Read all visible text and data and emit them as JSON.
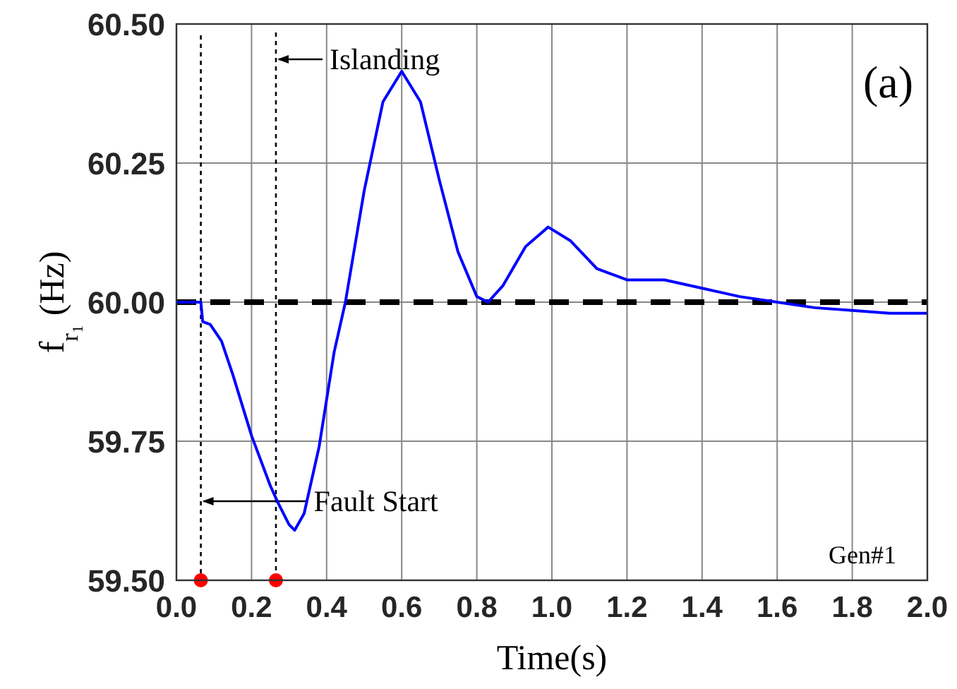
{
  "chart_data": {
    "type": "line",
    "xlabel": "Time(s)",
    "ylabel": "f$_{r₁}$ (Hz)",
    "xlim": [
      0,
      2
    ],
    "xticks": [
      {
        "value": 0,
        "label": "0.0"
      },
      {
        "value": 0.2,
        "label": "0.2"
      },
      {
        "value": 0.4,
        "label": "0.4"
      },
      {
        "value": 0.6,
        "label": "0.6"
      },
      {
        "value": 0.8,
        "label": "0.8"
      },
      {
        "value": 1,
        "label": "1.0"
      },
      {
        "value": 1.2,
        "label": "1.2"
      },
      {
        "value": 1.4,
        "label": "1.4"
      },
      {
        "value": 1.6,
        "label": "1.6"
      },
      {
        "value": 1.8,
        "label": "1.8"
      },
      {
        "value": 2,
        "label": "2.0"
      }
    ],
    "ylim": [
      59.5,
      60.5
    ],
    "yticks": [
      {
        "value": 59.5,
        "label": "59.50"
      },
      {
        "value": 59.75,
        "label": "59.75"
      },
      {
        "value": 60,
        "label": "60.00"
      },
      {
        "value": 60.25,
        "label": "60.25"
      },
      {
        "value": 60.5,
        "label": "60.50"
      }
    ],
    "grid": true,
    "line_style": "solid",
    "series": [
      {
        "color": "#0000ff",
        "x": [
          0,
          0.065,
          0.07,
          0.09,
          0.12,
          0.15,
          0.2,
          0.25,
          0.27,
          0.3,
          0.315,
          0.34,
          0.38,
          0.42,
          0.45,
          0.5,
          0.55,
          0.6,
          0.65,
          0.7,
          0.75,
          0.8,
          0.83,
          0.87,
          0.93,
          0.99,
          1.05,
          1.12,
          1.2,
          1.3,
          1.4,
          1.5,
          1.6,
          1.7,
          1.8,
          1.9,
          2.0
        ],
        "values": [
          60,
          60,
          59.965,
          59.96,
          59.93,
          59.87,
          59.76,
          59.67,
          59.64,
          59.6,
          59.59,
          59.62,
          59.74,
          59.91,
          60,
          60.2,
          60.36,
          60.415,
          60.36,
          60.22,
          60.09,
          60.01,
          60,
          60.03,
          60.1,
          60.135,
          60.11,
          60.06,
          60.04,
          60.04,
          60.025,
          60.01,
          60,
          59.99,
          59.985,
          59.98,
          59.98
        ]
      },
      {
        "type": "scatter",
        "color": "#ff0000",
        "marker": "circle",
        "x": [
          0.065,
          0.265
        ],
        "values": [
          59.5,
          59.5
        ]
      }
    ],
    "ref_lines": [
      {
        "axis": "y",
        "value": 60,
        "color": "#000000",
        "line_style": "dashed"
      },
      {
        "axis": "x",
        "value": 0.065,
        "label": "Fault Start",
        "color": "#000000",
        "line_style": "dotted"
      },
      {
        "axis": "x",
        "value": 0.265,
        "label": "Islanding",
        "color": "#000000",
        "line_style": "dotted"
      }
    ],
    "annotations": [
      "(a)",
      "Gen#1"
    ]
  }
}
